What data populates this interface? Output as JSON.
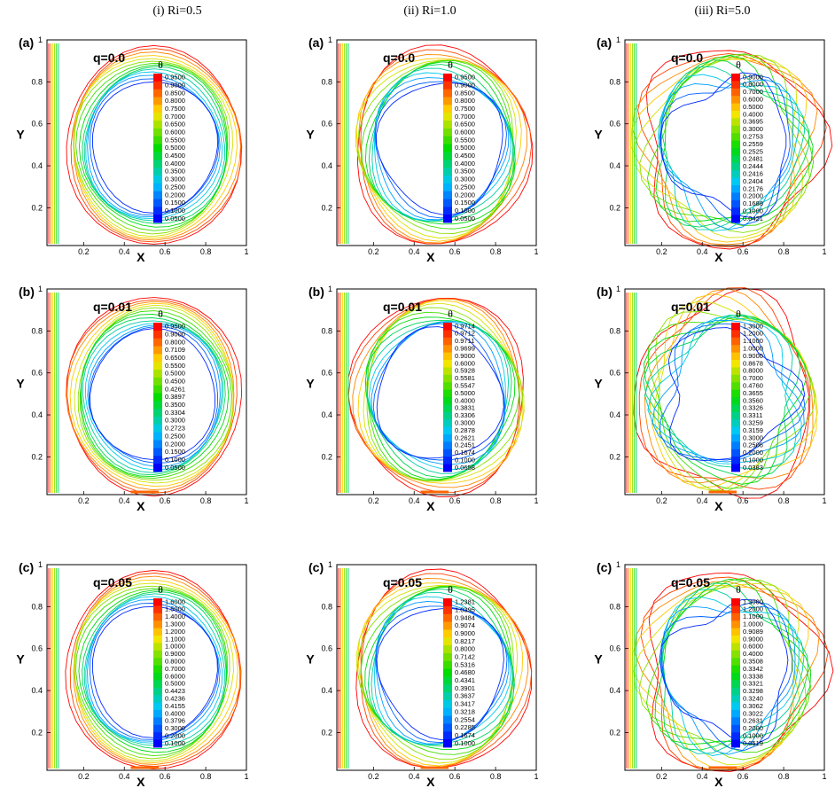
{
  "chart_data": {
    "type": "contour",
    "columns": [
      "(i) Ri=0.5",
      "(ii) Ri=1.0",
      "(iii) Ri=5.0"
    ],
    "row_labels": [
      "(a)",
      "(b)",
      "(c)"
    ],
    "xlabel": "X",
    "ylabel": "Y",
    "xticks": [
      "0.2",
      "0.4",
      "0.6",
      "0.8",
      "1"
    ],
    "yticks": [
      "0.2",
      "0.4",
      "0.6",
      "0.8",
      "1"
    ],
    "colorbar_symbol": "θ",
    "panels": [
      {
        "row": 0,
        "col": 0,
        "label": "(a)",
        "q": "q=0.0",
        "levels": [
          "0.9500",
          "0.9000",
          "0.8500",
          "0.8000",
          "0.7500",
          "0.7000",
          "0.6500",
          "0.6000",
          "0.5500",
          "0.5000",
          "0.4500",
          "0.4000",
          "0.3500",
          "0.3000",
          "0.2500",
          "0.2000",
          "0.1500",
          "0.1000",
          "0.0500"
        ]
      },
      {
        "row": 0,
        "col": 1,
        "label": "(a)",
        "q": "q=0.0",
        "levels": [
          "0.9500",
          "0.9000",
          "0.8500",
          "0.8000",
          "0.7500",
          "0.7000",
          "0.6500",
          "0.6000",
          "0.5500",
          "0.5000",
          "0.4500",
          "0.4000",
          "0.3500",
          "0.3000",
          "0.2500",
          "0.2000",
          "0.1500",
          "0.1000",
          "0.0500"
        ]
      },
      {
        "row": 0,
        "col": 2,
        "label": "(a)",
        "q": "q=0.0",
        "levels": [
          "0.9000",
          "0.8000",
          "0.7000",
          "0.6000",
          "0.5000",
          "0.4000",
          "0.3695",
          "0.3000",
          "0.2753",
          "0.2559",
          "0.2525",
          "0.2481",
          "0.2444",
          "0.2416",
          "0.2404",
          "0.2176",
          "0.2000",
          "0.1688",
          "0.1000",
          "0.0421"
        ]
      },
      {
        "row": 1,
        "col": 0,
        "label": "(b)",
        "q": "q=0.01",
        "levels": [
          "0.9500",
          "0.9000",
          "0.8000",
          "0.7109",
          "0.6500",
          "0.5500",
          "0.5000",
          "0.4500",
          "0.4261",
          "0.3897",
          "0.3500",
          "0.3304",
          "0.3000",
          "0.2723",
          "0.2500",
          "0.2000",
          "0.1500",
          "0.1000",
          "0.0500"
        ]
      },
      {
        "row": 1,
        "col": 1,
        "label": "(b)",
        "q": "q=0.01",
        "levels": [
          "0.9714",
          "0.9712",
          "0.9711",
          "0.9699",
          "0.9000",
          "0.6000",
          "0.5928",
          "0.5581",
          "0.5547",
          "0.5000",
          "0.4000",
          "0.3831",
          "0.3306",
          "0.3000",
          "0.2878",
          "0.2621",
          "0.2451",
          "0.1674",
          "0.1000",
          "0.0658"
        ]
      },
      {
        "row": 1,
        "col": 2,
        "label": "(b)",
        "q": "q=0.01",
        "levels": [
          "1.3000",
          "1.2000",
          "1.1000",
          "1.0000",
          "0.9000",
          "0.8678",
          "0.8000",
          "0.7000",
          "0.4760",
          "0.3655",
          "0.3560",
          "0.3326",
          "0.3311",
          "0.3259",
          "0.3159",
          "0.3000",
          "0.2506",
          "0.2000",
          "0.1000",
          "0.0383"
        ]
      },
      {
        "row": 2,
        "col": 0,
        "label": "(c)",
        "q": "q=0.05",
        "levels": [
          "1.6000",
          "1.5000",
          "1.4000",
          "1.3000",
          "1.2000",
          "1.1000",
          "1.0000",
          "0.9000",
          "0.8000",
          "0.7000",
          "0.6000",
          "0.5000",
          "0.4423",
          "0.4236",
          "0.4155",
          "0.4000",
          "0.3796",
          "0.3000",
          "0.2000",
          "0.1000"
        ]
      },
      {
        "row": 2,
        "col": 1,
        "label": "(c)",
        "q": "q=0.05",
        "levels": [
          "1.2381",
          "1.0395",
          "0.9484",
          "0.9074",
          "0.9000",
          "0.8217",
          "0.8000",
          "0.7142",
          "0.5316",
          "0.4680",
          "0.4341",
          "0.3901",
          "0.3637",
          "0.3417",
          "0.3218",
          "0.2554",
          "0.2285",
          "0.1674",
          "0.1000"
        ]
      },
      {
        "row": 2,
        "col": 2,
        "label": "(c)",
        "q": "q=0.05",
        "levels": [
          "1.3000",
          "1.2000",
          "1.1000",
          "1.0000",
          "0.9089",
          "0.9000",
          "0.6000",
          "0.4000",
          "0.3508",
          "0.3342",
          "0.3338",
          "0.3321",
          "0.3298",
          "0.3240",
          "0.3062",
          "0.3022",
          "0.2631",
          "0.2000",
          "0.1000",
          "0.0519"
        ]
      }
    ]
  }
}
